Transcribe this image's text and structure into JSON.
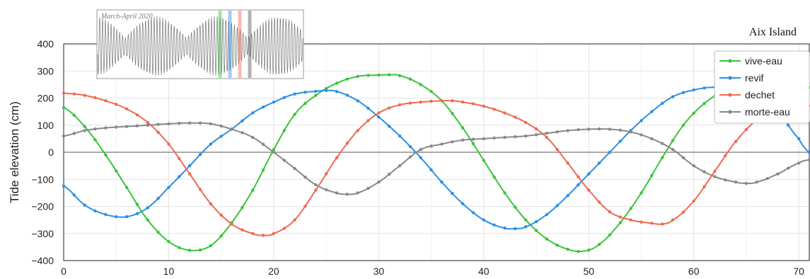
{
  "chart_data": {
    "type": "line",
    "title": "",
    "location_label": "Aix Island",
    "xlabel": "",
    "ylabel": "Tide elevation (cm)",
    "xlim": [
      0,
      71
    ],
    "ylim": [
      -400,
      400
    ],
    "xticks": [
      0,
      10,
      20,
      30,
      40,
      50,
      60,
      70
    ],
    "yticks": [
      400,
      300,
      200,
      100,
      0,
      -100,
      -200,
      -300,
      -400
    ],
    "grid": true,
    "legend_position": "top-right",
    "series": [
      {
        "name": "vive-eau",
        "color": "#3cc33c",
        "x": [
          0,
          2,
          4,
          6,
          8,
          10,
          12,
          14,
          16,
          18,
          20,
          22,
          24,
          26,
          28,
          30,
          31,
          32,
          34,
          36,
          38,
          40,
          42,
          44,
          46,
          48,
          49.5,
          51,
          53,
          55,
          57,
          59,
          61,
          63,
          65,
          67,
          69,
          71
        ],
        "y": [
          165,
          95,
          -10,
          -130,
          -250,
          -330,
          -362,
          -345,
          -260,
          -140,
          10,
          140,
          210,
          255,
          280,
          285,
          286,
          283,
          250,
          190,
          90,
          -30,
          -150,
          -250,
          -320,
          -358,
          -365,
          -340,
          -260,
          -150,
          -20,
          100,
          180,
          230,
          260,
          270,
          268,
          240
        ]
      },
      {
        "name": "revif",
        "color": "#2b8fe6",
        "x": [
          0,
          2,
          4,
          6,
          8,
          10,
          12,
          14,
          16,
          18,
          20,
          22,
          24,
          25,
          26,
          28,
          30,
          32,
          34,
          36,
          38,
          40,
          42,
          43,
          44,
          46,
          48,
          50,
          52,
          54,
          56,
          58,
          60,
          62,
          64,
          66,
          68,
          70,
          71
        ],
        "y": [
          -125,
          -195,
          -230,
          -238,
          -205,
          -130,
          -50,
          30,
          85,
          145,
          185,
          215,
          225,
          228,
          224,
          190,
          130,
          60,
          -20,
          -110,
          -190,
          -250,
          -280,
          -282,
          -275,
          -230,
          -160,
          -80,
          0,
          80,
          150,
          205,
          230,
          240,
          230,
          200,
          150,
          50,
          0
        ]
      },
      {
        "name": "dechet",
        "color": "#ee6a52",
        "x": [
          0,
          2,
          4,
          6,
          8,
          10,
          12,
          14,
          16,
          18,
          19,
          20,
          22,
          24,
          26,
          28,
          30,
          32,
          34,
          36,
          37,
          38,
          40,
          42,
          44,
          46,
          48,
          50,
          52,
          54,
          56,
          57,
          58,
          60,
          62,
          64,
          66,
          68,
          70,
          71
        ],
        "y": [
          218,
          210,
          190,
          160,
          110,
          30,
          -80,
          -190,
          -265,
          -300,
          -307,
          -300,
          -250,
          -140,
          -20,
          80,
          145,
          175,
          185,
          190,
          190,
          185,
          170,
          145,
          110,
          55,
          -40,
          -140,
          -220,
          -250,
          -262,
          -265,
          -250,
          -180,
          -70,
          40,
          120,
          165,
          172,
          172
        ]
      },
      {
        "name": "morte-eau",
        "color": "#888888",
        "x": [
          0,
          2,
          4,
          6,
          8,
          10,
          12,
          14,
          16,
          18,
          20,
          22,
          24,
          26,
          27,
          28,
          30,
          32,
          34,
          36,
          38,
          40,
          42,
          44,
          46,
          48,
          50,
          52,
          54,
          56,
          58,
          60,
          62,
          64,
          65,
          66,
          68,
          70,
          71
        ],
        "y": [
          60,
          80,
          90,
          95,
          100,
          105,
          108,
          105,
          85,
          55,
          0,
          -60,
          -120,
          -150,
          -155,
          -150,
          -110,
          -50,
          10,
          30,
          45,
          50,
          55,
          60,
          70,
          80,
          85,
          85,
          75,
          50,
          10,
          -50,
          -90,
          -110,
          -115,
          -110,
          -80,
          -40,
          -28
        ]
      }
    ],
    "inset": {
      "label": "March-April 2020",
      "markers": [
        {
          "name": "vive-eau",
          "color": "#3cc33c"
        },
        {
          "name": "revif",
          "color": "#2b8fe6"
        },
        {
          "name": "dechet",
          "color": "#ee6a52"
        },
        {
          "name": "morte-eau",
          "color": "#555555"
        }
      ]
    }
  }
}
